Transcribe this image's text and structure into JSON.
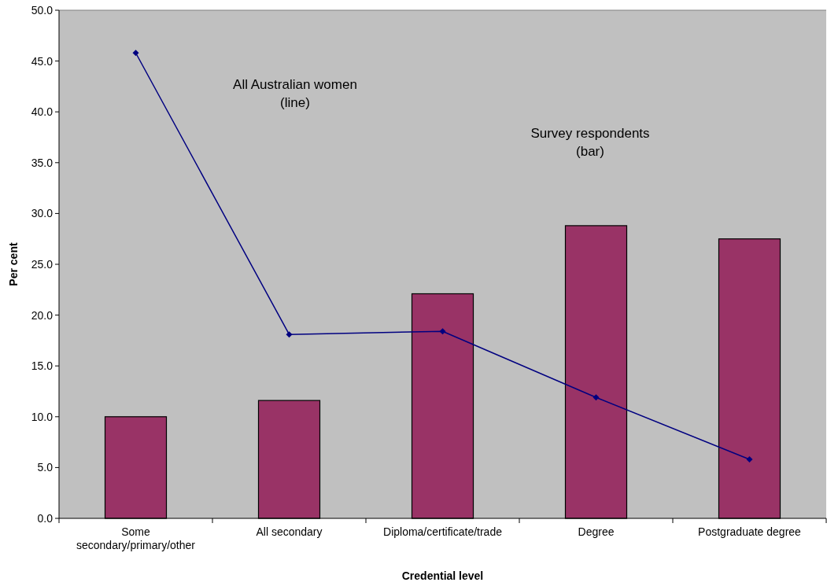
{
  "chart_data": {
    "type": "bar",
    "xlabel": "Credential level",
    "ylabel": "Per cent",
    "categories": [
      "Some secondary/primary/other",
      "All secondary",
      "Diploma/certificate/trade",
      "Degree",
      "Postgraduate degree"
    ],
    "series": [
      {
        "color": "#993366",
        "values": [
          10.0,
          11.6,
          22.1,
          28.8,
          27.5
        ]
      },
      {
        "type": "line",
        "color": "#000080",
        "values": [
          45.8,
          18.1,
          18.4,
          11.9,
          5.8
        ],
        "marker": "diamond"
      }
    ],
    "ylim": [
      0,
      50
    ],
    "yticks": [
      {
        "value": 0,
        "label": "0.0"
      },
      {
        "value": 5,
        "label": "5.0"
      },
      {
        "value": 10,
        "label": "10.0"
      },
      {
        "value": 15,
        "label": "15.0"
      },
      {
        "value": 20,
        "label": "20.0"
      },
      {
        "value": 25,
        "label": "25.0"
      },
      {
        "value": 30,
        "label": "30.0"
      },
      {
        "value": 35,
        "label": "35.0"
      },
      {
        "value": 40,
        "label": "40.0"
      },
      {
        "value": 45,
        "label": "45.0"
      },
      {
        "value": 50,
        "label": "50.0"
      }
    ],
    "annotations": [
      "All Australian women\n(line)",
      "Survey respondents\n(bar)"
    ],
    "grid": false
  }
}
